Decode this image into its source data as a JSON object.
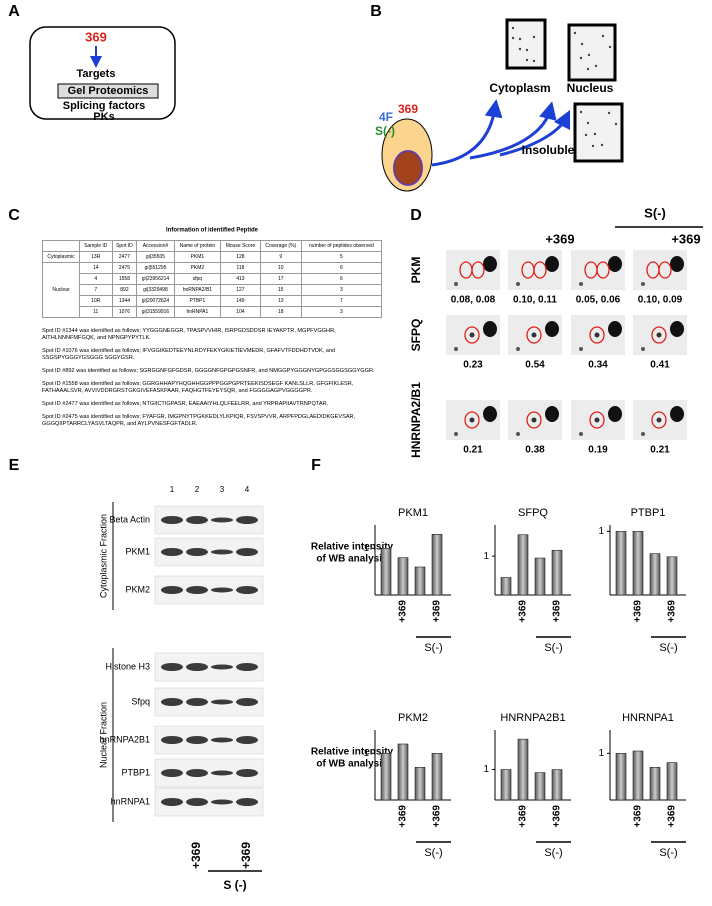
{
  "panel_a": {
    "label": "A",
    "top": "369",
    "targets": "Targets",
    "box": "Gel Proteomics",
    "bottom": [
      "Splicing factors",
      "PKs"
    ]
  },
  "panel_b": {
    "label": "B",
    "f4": "4F",
    "n369": "369",
    "s": "S(-)",
    "cytoplasm": "Cytoplasm",
    "nucleus": "Nucleus",
    "insoluble": "Insoluble"
  },
  "panel_c": {
    "label": "C",
    "title": "Information of identified Peptide",
    "table": {
      "header": [
        "Sample ID",
        "Spot ID",
        "Accession#",
        "Name of protein",
        "Mouse Score",
        "Coverage (%)",
        "number of peptides observed"
      ],
      "sections": [
        {
          "name": "Cytoplasmic",
          "rows": [
            [
              "13R",
              "2477",
              "gi|35505",
              "PKM1",
              "128",
              "9",
              "5"
            ]
          ]
        },
        {
          "name": "Nuclear",
          "rows": [
            [
              "14",
              "2475",
              "gi|551295",
              "PKM2",
              "118",
              "10",
              "6"
            ],
            [
              "4",
              "1558",
              "gi|23956214",
              "sfpq",
              "413",
              "17",
              "6"
            ],
            [
              "7",
              "892",
              "gi|3329498",
              "hnRNPA2/B1",
              "127",
              "15",
              "3"
            ],
            [
              "10R",
              "1344",
              "gi|20072624",
              "PTBP1",
              "149",
              "13",
              "7"
            ],
            [
              "11",
              "1076",
              "gi|31559916",
              "hnRNPA1",
              "104",
              "18",
              "3"
            ]
          ]
        }
      ]
    },
    "notes": [
      "Spot ID #1344 was identified as follows; YYGGGNEGGR, TPASPVVHIR, ISRPGDSDDSR IEYAKPTR, MGPFVGGHR, AITHLNNNFMFGQK, and NPNGPYPYTLK.",
      "Spot ID #1076 was identified as follows; IFVGGIKEDTEEYNLRDYFEKYGKIETIEVMEDR, GFAFVTFDDHDTVDK, and SSGSPYGGGYGSGGG SGGYGSR.",
      "Spot ID #892 was identified as follows; SGRGGNFGFGDSR, GGGGNFGPGPGSNFR, and NMGGPYGGGNYGPGGSGGSGGYGGR.",
      "Spot ID #1558 was identified as follows; GGRGHHAPYHQGHHGGPPPGGPGPRTEEKISDSEGF KANLSLLR, GFGFIKLESR, FATHAAALSVR, AVVIVDDRGRSTGKGIVEFASKPAAR, FAQHGTFEYEYSQR, and FGGGGAGPVGGGGPR.",
      "Spot ID #2477 was identified as follows; NTGIICTIGPASR, EAEAAIYHLQLFEELRR, and YRPRAPIIAVTRNPQTAR.",
      "Spot ID #2475 was identified as follows; FYAFGR, IMGPNYTPGKKEDLYLKPIQR, FSVSPVVR, ARPFPDGLAEDIDKGEVSAR, GGGQIIPTARRCLYASVLTAQPR, and AYLPVNESFGFTADLR."
    ]
  },
  "panel_d": {
    "label": "D",
    "headers": [
      "+369",
      "S(-)",
      "+369"
    ],
    "rows": [
      {
        "name": "PKM",
        "values": [
          "0.08, 0.08",
          "0.10, 0.11",
          "0.05, 0.06",
          "0.10, 0.09"
        ]
      },
      {
        "name": "SFPQ",
        "values": [
          "0.23",
          "0.54",
          "0.34",
          "0.41"
        ]
      },
      {
        "name": "HNRNPA2/B1",
        "values": [
          "0.21",
          "0.38",
          "0.19",
          "0.21"
        ]
      }
    ]
  },
  "panel_e": {
    "label": "E",
    "lanes": [
      1,
      2,
      3,
      4
    ],
    "fractions": [
      {
        "name": "Cytoplasmic Fraction",
        "blots": [
          "Beta Actin",
          "PKM1",
          "PKM2"
        ]
      },
      {
        "name": "Nuclear Fraction",
        "blots": [
          "Histone H3",
          "Sfpq",
          "hnRNPA2B1",
          "PTBP1",
          "hnRNPA1"
        ]
      }
    ],
    "bottom_labels": [
      "+369",
      "+369"
    ],
    "group_label": "S (-)"
  },
  "panel_f": {
    "label": "F",
    "ylabel": [
      "Relative intensity",
      "of WB analysis"
    ]
  },
  "chart_data": [
    {
      "type": "bar",
      "title": "PKM1",
      "categories": [
        null,
        "+369",
        null,
        "+369"
      ],
      "group_label": "S(-)",
      "values": [
        1.0,
        0.8,
        0.6,
        1.3
      ],
      "ylim": [
        0,
        1.5
      ],
      "yticks": [
        1
      ],
      "color": "#8a8a8a"
    },
    {
      "type": "bar",
      "title": "SFPQ",
      "categories": [
        null,
        "+369",
        null,
        "+369"
      ],
      "group_label": "S(-)",
      "values": [
        0.45,
        1.55,
        0.95,
        1.15
      ],
      "ylim": [
        0,
        1.8
      ],
      "yticks": [
        1
      ],
      "color": "#8a8a8a"
    },
    {
      "type": "bar",
      "title": "PTBP1",
      "categories": [
        null,
        "+369",
        null,
        "+369"
      ],
      "group_label": "S(-)",
      "values": [
        1.0,
        1.0,
        0.65,
        0.6
      ],
      "ylim": [
        0,
        1.1
      ],
      "yticks": [
        1
      ],
      "color": "#8a8a8a"
    },
    {
      "type": "bar",
      "title": "PKM2",
      "categories": [
        null,
        "+369",
        null,
        "+369"
      ],
      "group_label": "S(-)",
      "values": [
        1.0,
        1.2,
        0.7,
        1.0
      ],
      "ylim": [
        0,
        1.5
      ],
      "yticks": [
        1
      ],
      "color": "#8a8a8a"
    },
    {
      "type": "bar",
      "title": "HNRNPA2B1",
      "categories": [
        null,
        "+369",
        null,
        "+369"
      ],
      "group_label": "S(-)",
      "values": [
        1.0,
        2.0,
        0.9,
        1.0
      ],
      "ylim": [
        0,
        2.3
      ],
      "yticks": [
        1
      ],
      "color": "#8a8a8a"
    },
    {
      "type": "bar",
      "title": "HNRNPA1",
      "categories": [
        null,
        "+369",
        null,
        "+369"
      ],
      "group_label": "S(-)",
      "values": [
        1.0,
        1.05,
        0.7,
        0.8
      ],
      "ylim": [
        0,
        1.5
      ],
      "yticks": [
        1
      ],
      "color": "#8a8a8a"
    }
  ]
}
